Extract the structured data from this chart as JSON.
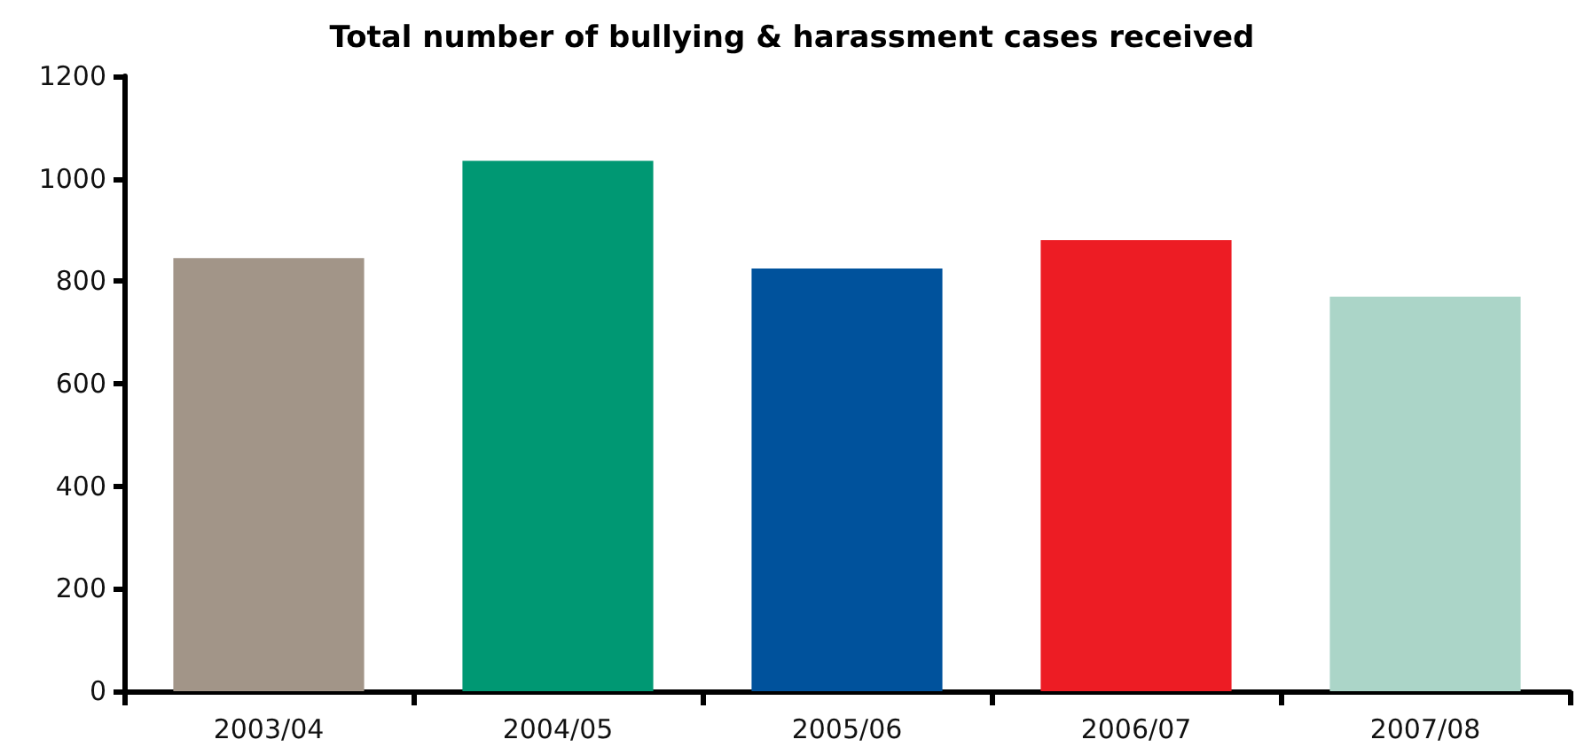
{
  "chart_data": {
    "type": "bar",
    "title": "Total number of bullying & harassment cases received",
    "categories": [
      "2003/04",
      "2004/05",
      "2005/06",
      "2006/07",
      "2007/08"
    ],
    "values": [
      845,
      1035,
      825,
      880,
      770
    ],
    "colors": [
      "#a29588",
      "#009873",
      "#00529c",
      "#ed1c24",
      "#abd5c8"
    ],
    "ylim": [
      0,
      1200
    ],
    "yticks": [
      0,
      200,
      400,
      600,
      800,
      1000,
      1200
    ],
    "grid": false
  }
}
